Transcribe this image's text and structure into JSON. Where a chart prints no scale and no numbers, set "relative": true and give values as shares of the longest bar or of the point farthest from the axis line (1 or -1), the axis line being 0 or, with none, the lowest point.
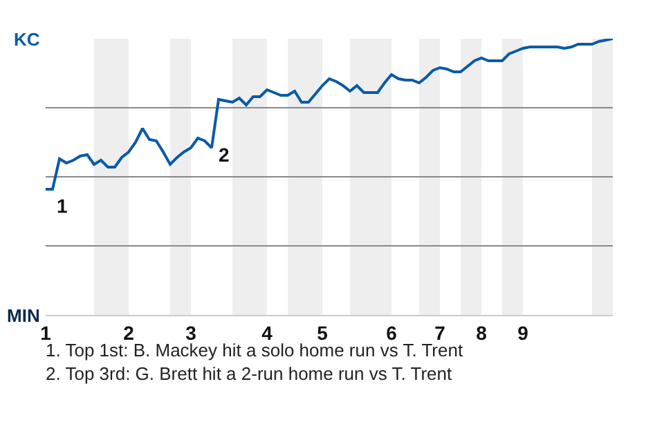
{
  "chart_data": {
    "type": "line",
    "marker": "none",
    "line_style": "solid",
    "grid": "y",
    "relative": true,
    "categories": [
      "1",
      null,
      null,
      null,
      null,
      null,
      null,
      null,
      null,
      null,
      null,
      null,
      "2",
      null,
      null,
      null,
      null,
      null,
      null,
      null,
      null,
      "3",
      null,
      null,
      null,
      null,
      null,
      null,
      null,
      null,
      null,
      null,
      "4",
      null,
      null,
      null,
      null,
      null,
      null,
      null,
      "5",
      null,
      null,
      null,
      null,
      null,
      null,
      null,
      null,
      null,
      "6",
      null,
      null,
      null,
      null,
      null,
      null,
      "7",
      null,
      null,
      null,
      null,
      null,
      "8",
      null,
      null,
      null,
      null,
      null,
      "9",
      null,
      null,
      null,
      null,
      null,
      null,
      null,
      null,
      null,
      null,
      null,
      null,
      null
    ],
    "series": [
      {
        "color": "#0a5aa8",
        "values": [
          0.455,
          0.455,
          0.565,
          0.55,
          0.56,
          0.575,
          0.58,
          0.545,
          0.56,
          0.535,
          0.535,
          0.57,
          0.59,
          0.625,
          0.675,
          0.635,
          0.63,
          0.59,
          0.545,
          0.57,
          0.59,
          0.605,
          0.64,
          0.63,
          0.605,
          0.78,
          0.775,
          0.77,
          0.785,
          0.76,
          0.79,
          0.79,
          0.815,
          0.805,
          0.795,
          0.795,
          0.81,
          0.77,
          0.77,
          0.8,
          0.83,
          0.855,
          0.845,
          0.83,
          0.81,
          0.83,
          0.805,
          0.805,
          0.805,
          0.84,
          0.87,
          0.855,
          0.85,
          0.85,
          0.84,
          0.86,
          0.885,
          0.895,
          0.89,
          0.88,
          0.88,
          0.9,
          0.92,
          0.93,
          0.92,
          0.92,
          0.92,
          0.945,
          0.955,
          0.965,
          0.97,
          0.97,
          0.97,
          0.97,
          0.97,
          0.965,
          0.97,
          0.98,
          0.98,
          0.98,
          0.99,
          0.995,
          1
        ]
      }
    ],
    "annotations": [
      "KC",
      "MIN",
      "1",
      "2",
      "1. Top 1st: B. Mackey hit a solo home run vs T. Trent",
      "2. Top 3rd: G. Brett hit a 2-run home run vs T. Trent"
    ]
  }
}
